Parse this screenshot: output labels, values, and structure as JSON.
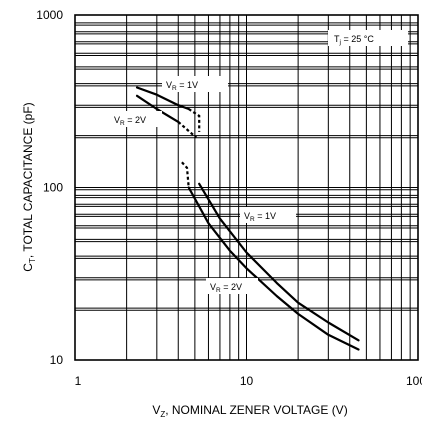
{
  "chart_data": {
    "type": "line",
    "title": "",
    "xlabel": {
      "main": "V",
      "sub": "Z",
      "rest": ", NOMINAL ZENER VOLTAGE (V)"
    },
    "ylabel": {
      "main": "C",
      "sub": "T",
      "rest": ", TOTAL CAPACITANCE (pF)"
    },
    "xscale": "log",
    "yscale": "log",
    "xlim": [
      1,
      100
    ],
    "ylim": [
      10,
      1000
    ],
    "x_ticks": [
      1,
      10,
      100
    ],
    "x_tick_labels": [
      "1",
      "10",
      "100"
    ],
    "y_ticks": [
      10,
      100,
      1000
    ],
    "y_tick_labels": [
      "10",
      "100",
      "1000"
    ],
    "grid": true,
    "annotation": {
      "main": "T",
      "sub": "j",
      "rest": " = 25 °C"
    },
    "series": [
      {
        "name": {
          "main": "V",
          "sub": "R",
          "rest": " = 1V"
        },
        "name_lower": {
          "main": "V",
          "sub": "R",
          "rest": " = 1V"
        },
        "segments": [
          {
            "style": "solid",
            "x": [
              2.3,
              3.0,
              4.0,
              4.6
            ],
            "y": [
              380,
              345,
              300,
              285
            ]
          },
          {
            "style": "dash",
            "x": [
              4.6,
              5.3,
              5.3
            ],
            "y": [
              285,
              260,
              210
            ]
          },
          {
            "style": "solid",
            "x": [
              5.3,
              7.0,
              10,
              15,
              20,
              30,
              45
            ],
            "y": [
              105,
              66,
              42,
              28,
              21.5,
              16.5,
              13
            ]
          }
        ]
      },
      {
        "name": {
          "main": "V",
          "sub": "R",
          "rest": " = 2V"
        },
        "name_lower": {
          "main": "V",
          "sub": "R",
          "rest": " = 2V"
        },
        "segments": [
          {
            "style": "solid",
            "x": [
              2.3,
              3.0,
              4.0
            ],
            "y": [
              340,
              285,
              240
            ]
          },
          {
            "style": "dash",
            "x": [
              4.0,
              4.8,
              5.1
            ],
            "y": [
              240,
              205,
              195
            ]
          },
          {
            "style": "dash",
            "x": [
              4.2,
              4.5,
              4.6
            ],
            "y": [
              140,
              130,
              100
            ]
          },
          {
            "style": "solid",
            "x": [
              4.6,
              6.0,
              8.0,
              10,
              15,
              20,
              30,
              45
            ],
            "y": [
              100,
              62,
              43,
              34,
              23.5,
              18.5,
              14,
              11.5
            ]
          }
        ]
      }
    ]
  }
}
